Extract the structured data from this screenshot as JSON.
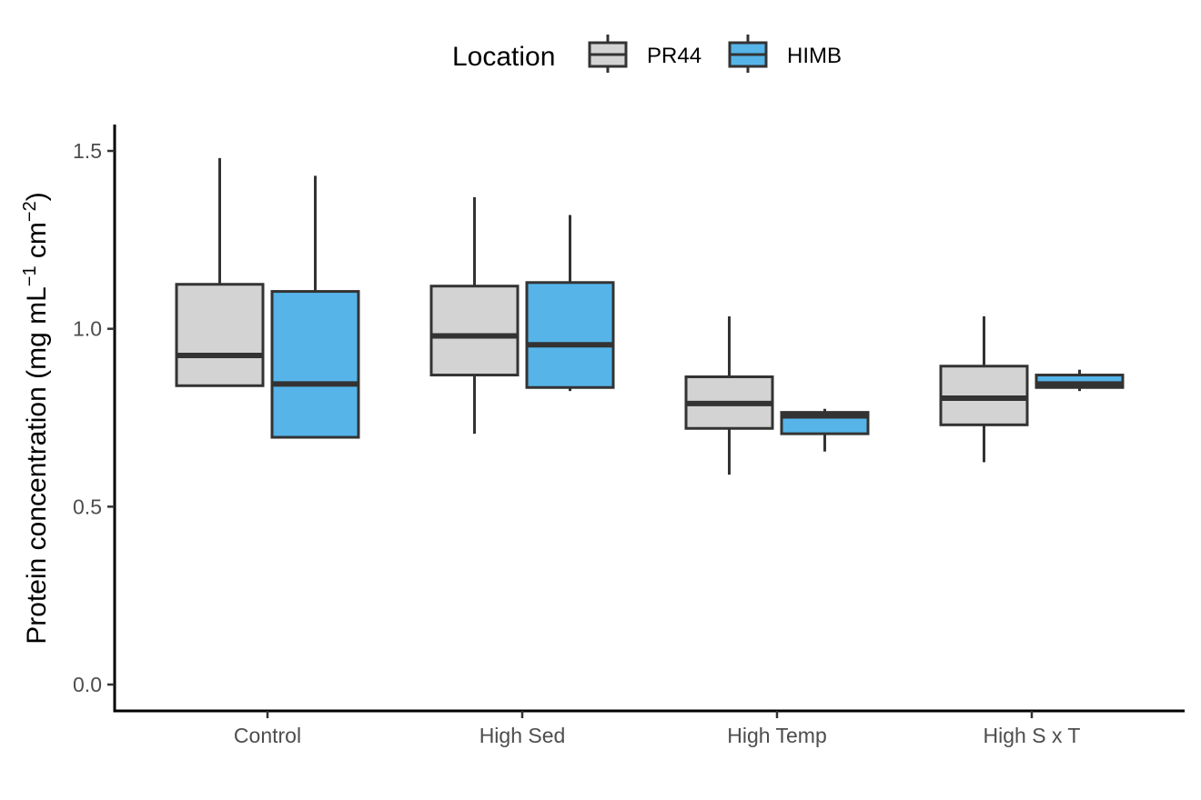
{
  "chart_data": {
    "type": "boxplot",
    "title": "",
    "xlabel": "",
    "ylabel": "Protein concentration (mg mL",
    "ylabel_parts": {
      "prefix": "Protein concentration (mg mL",
      "sup1": "−1",
      "middle": " cm",
      "sup2": "−2",
      "suffix": ")"
    },
    "ylim": [
      0,
      1.5
    ],
    "yticks": [
      "0.0",
      "0.5",
      "1.0",
      "1.5"
    ],
    "ytick_values": [
      0,
      0.5,
      1.0,
      1.5
    ],
    "categories": [
      "Control",
      "High Sed",
      "High Temp",
      "High S x T"
    ],
    "legend": {
      "title": "Location",
      "position": "top",
      "entries": [
        "PR44",
        "HIMB"
      ]
    },
    "grid": false,
    "series": [
      {
        "name": "PR44",
        "color": "#d3d3d3",
        "boxes": [
          {
            "category": "Control",
            "whisker_low": 0.84,
            "q1": 0.84,
            "median": 0.925,
            "q3": 1.125,
            "whisker_high": 1.48
          },
          {
            "category": "High Sed",
            "whisker_low": 0.705,
            "q1": 0.87,
            "median": 0.98,
            "q3": 1.12,
            "whisker_high": 1.37
          },
          {
            "category": "High Temp",
            "whisker_low": 0.59,
            "q1": 0.72,
            "median": 0.79,
            "q3": 0.865,
            "whisker_high": 1.035
          },
          {
            "category": "High S x T",
            "whisker_low": 0.625,
            "q1": 0.73,
            "median": 0.805,
            "q3": 0.895,
            "whisker_high": 1.035
          }
        ]
      },
      {
        "name": "HIMB",
        "color": "#56b4e9",
        "boxes": [
          {
            "category": "Control",
            "whisker_low": 0.695,
            "q1": 0.695,
            "median": 0.845,
            "q3": 1.105,
            "whisker_high": 1.43
          },
          {
            "category": "High Sed",
            "whisker_low": 0.825,
            "q1": 0.835,
            "median": 0.955,
            "q3": 1.13,
            "whisker_high": 1.32
          },
          {
            "category": "High Temp",
            "whisker_low": 0.655,
            "q1": 0.705,
            "median": 0.755,
            "q3": 0.765,
            "whisker_high": 0.775
          },
          {
            "category": "High S x T",
            "whisker_low": 0.825,
            "q1": 0.835,
            "median": 0.845,
            "q3": 0.87,
            "whisker_high": 0.885
          }
        ]
      }
    ]
  }
}
